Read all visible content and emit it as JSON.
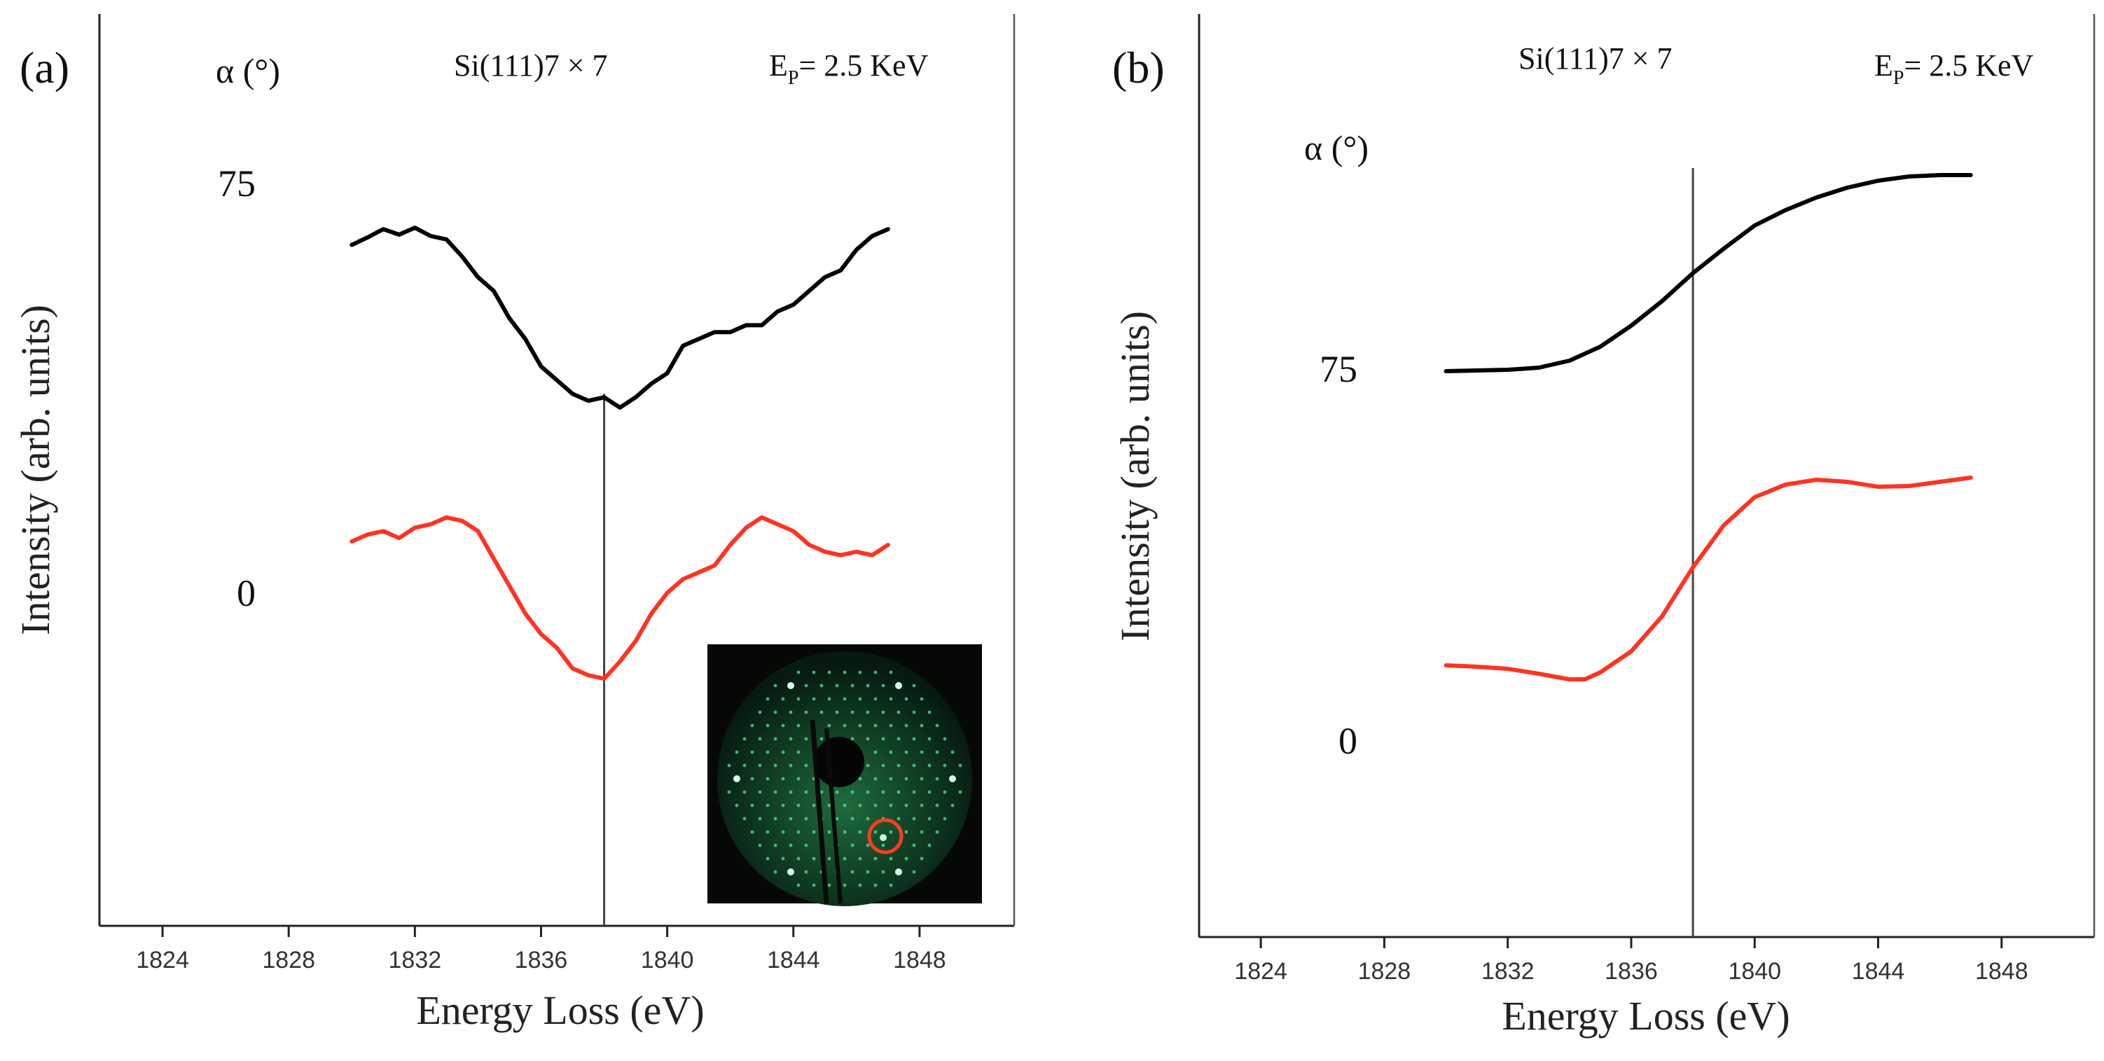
{
  "chart_data": [
    {
      "panel_label": "(a)",
      "type": "line",
      "title": "Si(111)7 × 7",
      "energy_label_main": "E",
      "energy_label_sub": "P",
      "energy_label_value": "= 2.5 KeV",
      "alpha_header": "α (°)",
      "xlabel": "Energy Loss (eV)",
      "ylabel": "Intensity (arb. units)",
      "xlim": [
        1822,
        1851
      ],
      "ylim": [
        0,
        1
      ],
      "grid": false,
      "x_ticks": [
        1824,
        1828,
        1832,
        1836,
        1840,
        1844,
        1848
      ],
      "x_tick_labels": [
        "1824",
        "1828",
        "1832",
        "1836",
        "1840",
        "1844",
        "1848"
      ],
      "vertical_marker_x": 1838,
      "inset": "LEED pattern photograph (bottom-right)",
      "series": [
        {
          "name": "75",
          "color": "#000000",
          "x": [
            1830,
            1830.5,
            1831,
            1831.5,
            1832,
            1832.5,
            1833,
            1833.5,
            1834,
            1834.5,
            1835,
            1835.5,
            1836,
            1836.5,
            1837,
            1837.5,
            1838,
            1838.5,
            1839,
            1839.5,
            1840,
            1840.5,
            1841,
            1841.5,
            1842,
            1842.5,
            1843,
            1843.5,
            1844,
            1844.5,
            1845,
            1845.5,
            1846,
            1846.5,
            1847
          ],
          "y": [
            0.837,
            0.848,
            0.86,
            0.852,
            0.862,
            0.85,
            0.845,
            0.82,
            0.79,
            0.77,
            0.73,
            0.7,
            0.66,
            0.64,
            0.62,
            0.61,
            0.615,
            0.6,
            0.615,
            0.635,
            0.65,
            0.69,
            0.7,
            0.71,
            0.71,
            0.72,
            0.72,
            0.74,
            0.75,
            0.77,
            0.79,
            0.8,
            0.83,
            0.85,
            0.86
          ]
        },
        {
          "name": "0",
          "color": "#ff3322",
          "x": [
            1830,
            1830.5,
            1831,
            1831.5,
            1832,
            1832.5,
            1833,
            1833.5,
            1834,
            1834.5,
            1835,
            1835.5,
            1836,
            1836.5,
            1837,
            1837.5,
            1838,
            1838.5,
            1839,
            1839.5,
            1840,
            1840.5,
            1841,
            1841.5,
            1842,
            1842.5,
            1843,
            1843.5,
            1844,
            1844.5,
            1845,
            1845.5,
            1846,
            1846.5,
            1847
          ],
          "y": [
            0.405,
            0.415,
            0.42,
            0.41,
            0.425,
            0.43,
            0.44,
            0.435,
            0.42,
            0.38,
            0.34,
            0.3,
            0.27,
            0.25,
            0.22,
            0.21,
            0.205,
            0.23,
            0.26,
            0.3,
            0.33,
            0.35,
            0.36,
            0.37,
            0.4,
            0.425,
            0.44,
            0.43,
            0.42,
            0.4,
            0.39,
            0.385,
            0.39,
            0.385,
            0.4
          ]
        }
      ]
    },
    {
      "panel_label": "(b)",
      "type": "line",
      "title": "Si(111)7 × 7",
      "energy_label_main": "E",
      "energy_label_sub": "P",
      "energy_label_value": "= 2.5 KeV",
      "alpha_header": "α (°)",
      "xlabel": "Energy Loss (eV)",
      "ylabel": "Intensity (arb. units)",
      "xlim": [
        1822,
        1851
      ],
      "ylim": [
        0,
        1
      ],
      "grid": false,
      "x_ticks": [
        1824,
        1828,
        1832,
        1836,
        1840,
        1844,
        1848
      ],
      "x_tick_labels": [
        "1824",
        "1828",
        "1832",
        "1836",
        "1840",
        "1844",
        "1848"
      ],
      "vertical_marker_x": 1838,
      "series": [
        {
          "name": "75",
          "color": "#000000",
          "x": [
            1830,
            1831,
            1832,
            1833,
            1834,
            1835,
            1836,
            1837,
            1838,
            1839,
            1840,
            1841,
            1842,
            1843,
            1844,
            1845,
            1846,
            1847
          ],
          "y": [
            0.62,
            0.621,
            0.622,
            0.625,
            0.635,
            0.655,
            0.685,
            0.72,
            0.76,
            0.795,
            0.828,
            0.85,
            0.868,
            0.882,
            0.892,
            0.898,
            0.9,
            0.9
          ]
        },
        {
          "name": "0",
          "color": "#ff3322",
          "x": [
            1830,
            1831,
            1832,
            1833,
            1834,
            1834.5,
            1835,
            1836,
            1837,
            1838,
            1839,
            1840,
            1841,
            1842,
            1843,
            1844,
            1845,
            1846,
            1847
          ],
          "y": [
            0.2,
            0.198,
            0.195,
            0.188,
            0.18,
            0.18,
            0.19,
            0.22,
            0.27,
            0.34,
            0.4,
            0.44,
            0.458,
            0.465,
            0.462,
            0.455,
            0.456,
            0.462,
            0.468
          ]
        }
      ]
    }
  ]
}
